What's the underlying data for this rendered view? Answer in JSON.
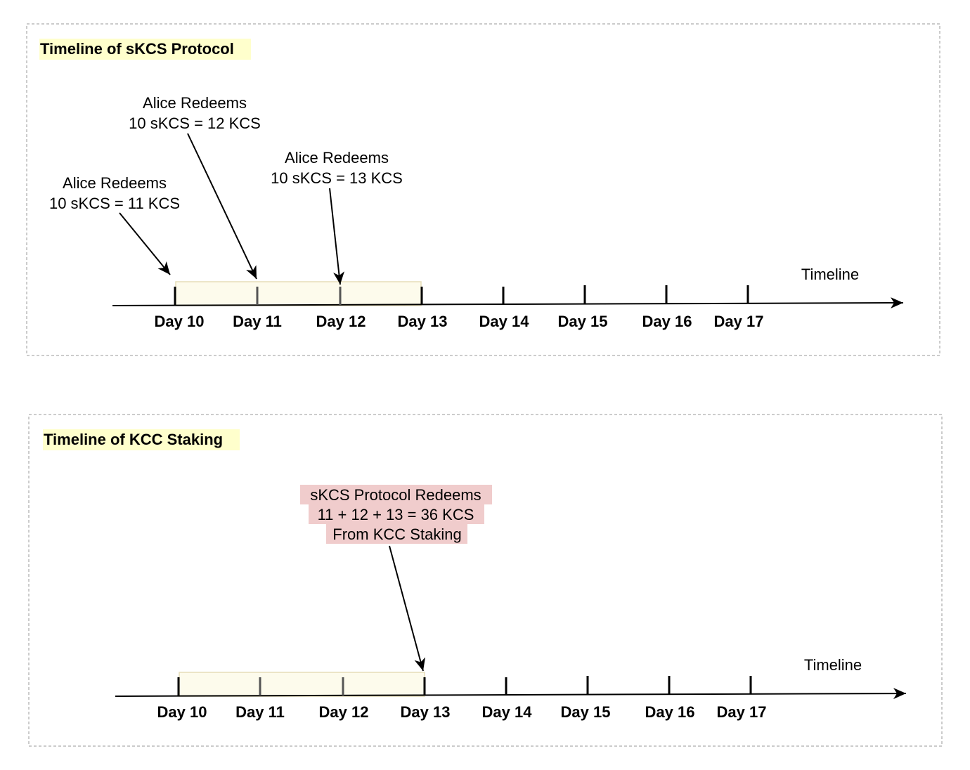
{
  "colors": {
    "title_highlight": "#ffffcc",
    "window_fill": "#fdfbec",
    "window_stroke": "#e6ddb8",
    "protocol_note_highlight": "#f0cccc",
    "panel_border": "#cccccc",
    "line": "#000000"
  },
  "panels": [
    {
      "title": "Timeline of sKCS Protocol",
      "axis_label": "Timeline",
      "days": [
        "Day 10",
        "Day 11",
        "Day 12",
        "Day 13",
        "Day 14",
        "Day 15",
        "Day 16",
        "Day 17"
      ],
      "window": {
        "from": "Day 10",
        "to": "Day 13"
      },
      "annotations": [
        {
          "lines": [
            "Alice Redeems",
            "10 sKCS = 11 KCS"
          ],
          "points_to": "Day 10"
        },
        {
          "lines": [
            "Alice Redeems",
            "10 sKCS = 12 KCS"
          ],
          "points_to": "Day 11"
        },
        {
          "lines": [
            "Alice Redeems",
            "10 sKCS = 13 KCS"
          ],
          "points_to": "Day 12"
        }
      ]
    },
    {
      "title": "Timeline of KCC Staking",
      "axis_label": "Timeline",
      "days": [
        "Day 10",
        "Day 11",
        "Day 12",
        "Day 13",
        "Day 14",
        "Day 15",
        "Day 16",
        "Day 17"
      ],
      "window": {
        "from": "Day 10",
        "to": "Day 13"
      },
      "annotations": [
        {
          "lines": [
            "sKCS Protocol Redeems",
            "11 + 12 + 13 = 36 KCS",
            "From KCC Staking"
          ],
          "points_to": "Day 13",
          "highlighted": true
        }
      ]
    }
  ]
}
